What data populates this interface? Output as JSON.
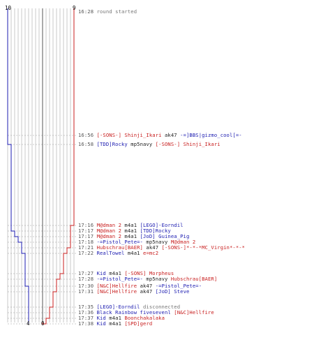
{
  "colors": {
    "blue": "#1b1bb0",
    "red": "#c81e1e",
    "grey": "#777777",
    "time": "#555555",
    "neutral": "#222222",
    "grid": "#bdbdbd",
    "axis": "#555555"
  },
  "scores": {
    "blue_start": "10",
    "red_start": "9",
    "blue_end": "4",
    "red_end": "0"
  },
  "events": [
    {
      "time": "16:28",
      "parts": [
        {
          "t": "round started",
          "c": "grey"
        }
      ]
    },
    {
      "time": "16:56",
      "parts": [
        {
          "t": "[-SONS-] Shinji_Ikari",
          "c": "red"
        },
        {
          "t": " ak47 ",
          "c": "neutral"
        },
        {
          "t": "-=]BBS|gizmo_cool[=-",
          "c": "blue"
        }
      ]
    },
    {
      "time": "16:58",
      "parts": [
        {
          "t": "[TDD]Rocky",
          "c": "blue"
        },
        {
          "t": " mp5navy ",
          "c": "neutral"
        },
        {
          "t": "[-SONS-] Shinji_Ikari",
          "c": "red"
        }
      ]
    },
    {
      "time": "17:16",
      "parts": [
        {
          "t": "M@dman 2",
          "c": "red"
        },
        {
          "t": " m4a1 ",
          "c": "neutral"
        },
        {
          "t": "[LEGO]-Eorndil",
          "c": "blue"
        }
      ]
    },
    {
      "time": "17:17",
      "parts": [
        {
          "t": "M@dman 2",
          "c": "red"
        },
        {
          "t": " m4a1 ",
          "c": "neutral"
        },
        {
          "t": "[TDD]Rocky",
          "c": "blue"
        }
      ]
    },
    {
      "time": "17:17",
      "parts": [
        {
          "t": "M@dman 2",
          "c": "red"
        },
        {
          "t": " m4a1 ",
          "c": "neutral"
        },
        {
          "t": "[JoD] Guinea_Pig",
          "c": "blue"
        }
      ]
    },
    {
      "time": "17:18",
      "parts": [
        {
          "t": "-=Pistol_Pete=-",
          "c": "blue"
        },
        {
          "t": " mp5navy ",
          "c": "neutral"
        },
        {
          "t": "M@dman 2",
          "c": "red"
        }
      ]
    },
    {
      "time": "17:21",
      "parts": [
        {
          "t": "Hubschrau[BAER]",
          "c": "red"
        },
        {
          "t": " ak47 ",
          "c": "neutral"
        },
        {
          "t": "[-SONS-]*-*-*MC_Virgin*-*-*",
          "c": "red"
        }
      ]
    },
    {
      "time": "17:22",
      "parts": [
        {
          "t": "RealTowel",
          "c": "blue"
        },
        {
          "t": " m4a1 ",
          "c": "neutral"
        },
        {
          "t": "e=mc2",
          "c": "red"
        }
      ]
    },
    {
      "time": "17:27",
      "parts": [
        {
          "t": "Kid",
          "c": "blue"
        },
        {
          "t": " m4a1 ",
          "c": "neutral"
        },
        {
          "t": "[-SONS] Morpheus",
          "c": "red"
        }
      ]
    },
    {
      "time": "17:28",
      "parts": [
        {
          "t": "-=Pistol_Pete=-",
          "c": "blue"
        },
        {
          "t": " mp5navy ",
          "c": "neutral"
        },
        {
          "t": "Hubschrau[BAER]",
          "c": "red"
        }
      ]
    },
    {
      "time": "17:30",
      "parts": [
        {
          "t": "[N&C]Hellfire",
          "c": "red"
        },
        {
          "t": " ak47 ",
          "c": "neutral"
        },
        {
          "t": "-=Pistol_Pete=-",
          "c": "blue"
        }
      ]
    },
    {
      "time": "17:31",
      "parts": [
        {
          "t": "[N&C]Hellfire",
          "c": "red"
        },
        {
          "t": " ak47 ",
          "c": "neutral"
        },
        {
          "t": "[JoD] Steve",
          "c": "blue"
        }
      ]
    },
    {
      "time": "17:35",
      "parts": [
        {
          "t": "[LEGO]-Eorndil",
          "c": "blue"
        },
        {
          "t": " disconnected",
          "c": "grey"
        }
      ]
    },
    {
      "time": "17:36",
      "parts": [
        {
          "t": "Black Rainbow fivesevenl",
          "c": "blue"
        },
        {
          "t": " ",
          "c": "neutral"
        },
        {
          "t": "[N&C]Hellfire",
          "c": "red"
        }
      ]
    },
    {
      "time": "17:37",
      "parts": [
        {
          "t": "Kid",
          "c": "blue"
        },
        {
          "t": " m4a1 ",
          "c": "neutral"
        },
        {
          "t": "Boonchakalaka",
          "c": "red"
        }
      ]
    },
    {
      "time": "17:38",
      "parts": [
        {
          "t": "Kid",
          "c": "blue"
        },
        {
          "t": " m4a1 ",
          "c": "neutral"
        },
        {
          "t": "[SPD]gerd",
          "c": "red"
        }
      ]
    }
  ],
  "series": {
    "blue_alive": [
      10,
      10,
      9,
      9,
      8,
      7,
      6,
      6,
      5,
      5,
      5,
      4,
      4,
      4,
      4,
      4,
      4
    ],
    "red_alive": [
      9,
      9,
      9,
      8,
      8,
      8,
      8,
      7,
      6,
      5,
      4,
      4,
      3,
      2,
      2,
      1,
      0
    ]
  }
}
